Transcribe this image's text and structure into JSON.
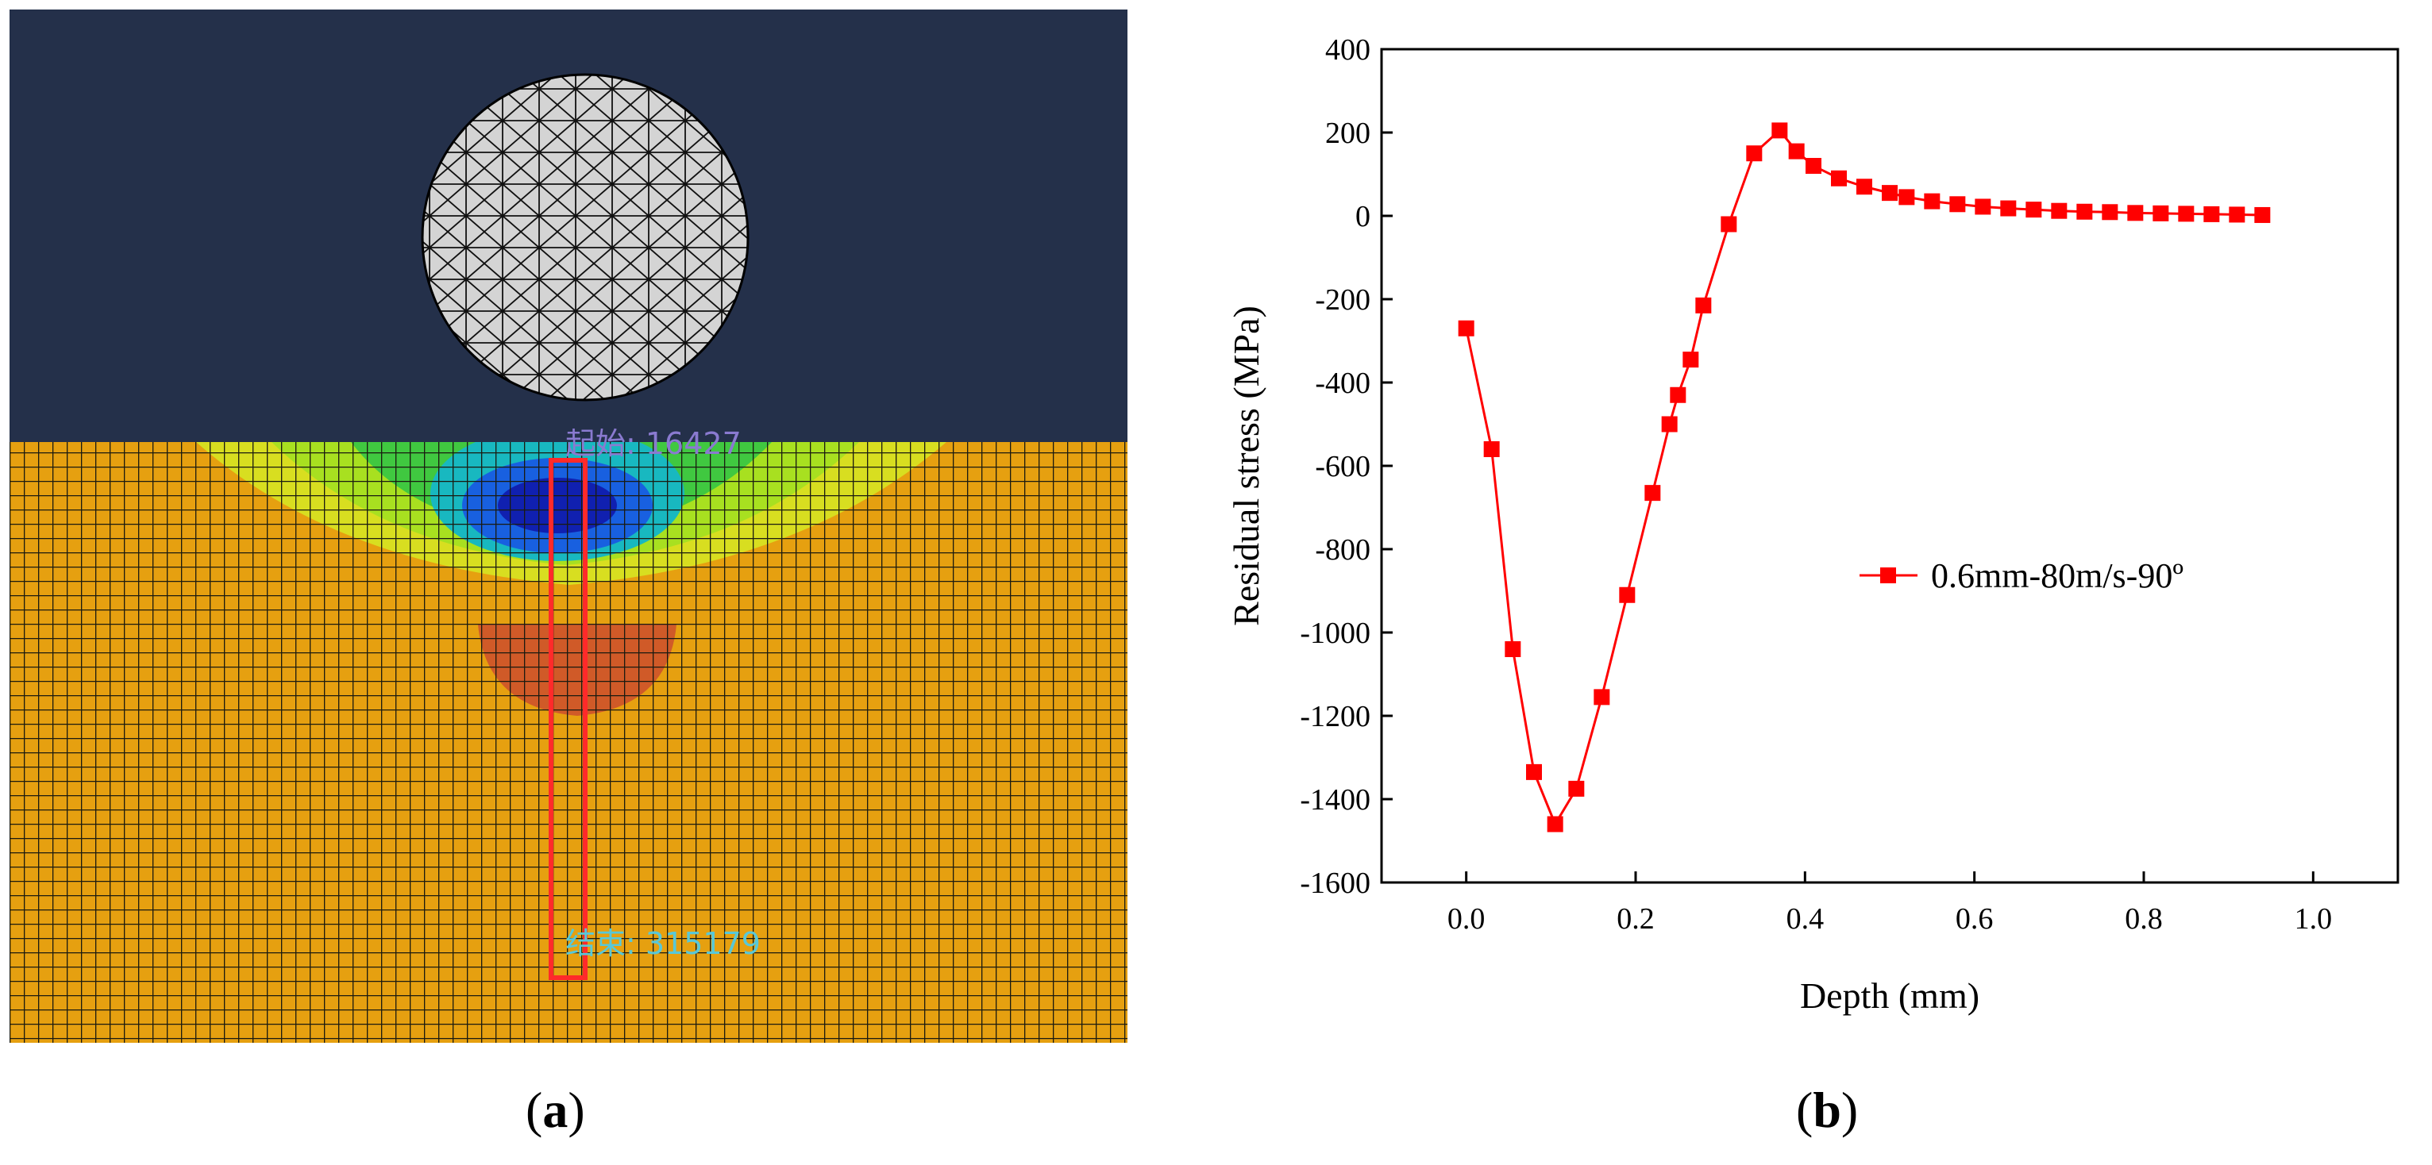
{
  "panel_a": {
    "label_start": "起始: 16427",
    "label_end": "结束: 315179",
    "colors": {
      "background": "#24304a",
      "substrate": "#e6a010",
      "mesh_line": "#1a1a10",
      "highlight": "#ff2a2a"
    }
  },
  "captions": {
    "a_letter": "a",
    "b_letter": "b"
  },
  "chart_data": {
    "type": "line",
    "xlabel": "Depth (mm)",
    "ylabel": "Residual stress (MPa)",
    "xlim": [
      -0.1,
      1.1
    ],
    "ylim": [
      -1600,
      400
    ],
    "xticks": [
      "0.0",
      "0.2",
      "0.4",
      "0.6",
      "0.8",
      "1.0"
    ],
    "xtick_values": [
      0.0,
      0.2,
      0.4,
      0.6,
      0.8,
      1.0
    ],
    "yticks": [
      "400",
      "200",
      "0",
      "-200",
      "-400",
      "-600",
      "-800",
      "-1000",
      "-1200",
      "-1400",
      "-1600"
    ],
    "ytick_values": [
      400,
      200,
      0,
      -200,
      -400,
      -600,
      -800,
      -1000,
      -1200,
      -1400,
      -1600
    ],
    "grid": false,
    "legend_position": "right-center",
    "series": [
      {
        "name": "0.6mm-80m/s-90º",
        "color": "#ff0000",
        "marker": "square",
        "x": [
          0.0,
          0.03,
          0.055,
          0.08,
          0.105,
          0.13,
          0.16,
          0.19,
          0.22,
          0.24,
          0.25,
          0.265,
          0.28,
          0.31,
          0.34,
          0.37,
          0.39,
          0.41,
          0.44,
          0.47,
          0.5,
          0.52,
          0.55,
          0.58,
          0.61,
          0.64,
          0.67,
          0.7,
          0.73,
          0.76,
          0.79,
          0.82,
          0.85,
          0.88,
          0.91,
          0.94
        ],
        "y": [
          -270,
          -560,
          -1040,
          -1335,
          -1460,
          -1375,
          -1155,
          -910,
          -665,
          -500,
          -430,
          -345,
          -215,
          -20,
          150,
          205,
          155,
          120,
          90,
          70,
          55,
          45,
          35,
          28,
          22,
          18,
          15,
          12,
          10,
          9,
          7,
          6,
          5,
          4,
          3,
          2
        ]
      }
    ]
  }
}
